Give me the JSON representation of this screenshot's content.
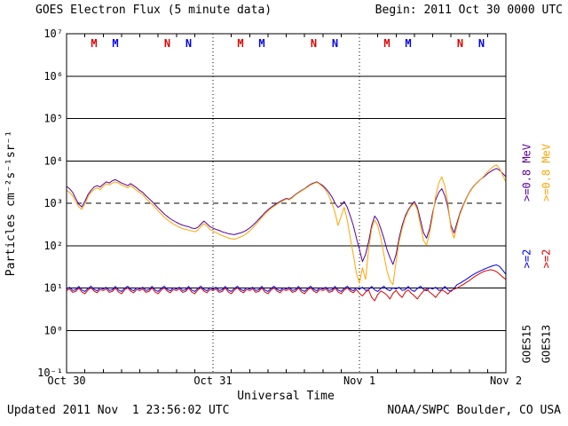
{
  "header": {
    "title": "GOES Electron Flux (5 minute data)",
    "begin_label": "Begin: 2011 Oct 30 0000 UTC"
  },
  "footer": {
    "updated": "Updated 2011 Nov  1 23:56:02 UTC",
    "credit": "NOAA/SWPC Boulder, CO USA"
  },
  "axes": {
    "y_label": "Particles cm⁻²s⁻¹sr⁻¹",
    "x_label": "Universal Time"
  },
  "legend": {
    "inner": {
      "sat": "GOES15",
      "e08": ">=0.8 MeV",
      "e2": ">=2",
      "color_e08": "#550099",
      "color_e2": "#0000EE",
      "color_sat": "#000000"
    },
    "outer": {
      "sat": "GOES13",
      "e08": ">=0.8 MeV",
      "e2": ">=2",
      "color_e08": "#FFA500",
      "color_e2": "#DD0000",
      "color_sat": "#000000"
    }
  },
  "chart_data": {
    "type": "line",
    "title": "GOES Electron Flux (5 minute data)",
    "x_unit": "hours since 2011-10-30 00:00 UTC",
    "x_range": [
      0,
      72
    ],
    "y_scale": "log10",
    "y_range_exp": [
      -1,
      7
    ],
    "y_tick_labels": [
      "10⁻¹",
      "10⁰",
      "10¹",
      "10²",
      "10³",
      "10⁴",
      "10⁵",
      "10⁶",
      "10⁷"
    ],
    "x_ticks": [
      {
        "hour": 0,
        "label": "Oct 30"
      },
      {
        "hour": 24,
        "label": "Oct 31"
      },
      {
        "hour": 48,
        "label": "Nov 1"
      },
      {
        "hour": 72,
        "label": "Nov 2"
      }
    ],
    "x_axis_label": "Universal Time",
    "day_lines_hours": [
      24,
      48
    ],
    "minor_tick_hours": 3,
    "threshold_line": {
      "value": 1000,
      "style": "dashed"
    },
    "grid": "solid-per-decade",
    "legend_position": "right-rotated",
    "markers": [
      {
        "hour": 4.5,
        "label": "M",
        "color": "#DD0000"
      },
      {
        "hour": 8,
        "label": "M",
        "color": "#0000EE"
      },
      {
        "hour": 16.5,
        "label": "N",
        "color": "#DD0000"
      },
      {
        "hour": 20,
        "label": "N",
        "color": "#0000EE"
      },
      {
        "hour": 28.5,
        "label": "M",
        "color": "#DD0000"
      },
      {
        "hour": 32,
        "label": "M",
        "color": "#0000EE"
      },
      {
        "hour": 40.5,
        "label": "N",
        "color": "#DD0000"
      },
      {
        "hour": 44,
        "label": "N",
        "color": "#0000EE"
      },
      {
        "hour": 52.5,
        "label": "M",
        "color": "#DD0000"
      },
      {
        "hour": 56,
        "label": "M",
        "color": "#0000EE"
      },
      {
        "hour": 64.5,
        "label": "N",
        "color": "#DD0000"
      },
      {
        "hour": 68,
        "label": "N",
        "color": "#0000EE"
      }
    ],
    "series": [
      {
        "name": "GOES15 >=0.8 MeV",
        "color": "#550099",
        "start_hour": 0,
        "step_hours": 0.5,
        "values": [
          2500,
          2200,
          1800,
          1300,
          950,
          820,
          1100,
          1600,
          2000,
          2400,
          2600,
          2400,
          2800,
          3200,
          3000,
          3400,
          3600,
          3300,
          3000,
          2800,
          2600,
          2900,
          2600,
          2300,
          2000,
          1800,
          1500,
          1300,
          1100,
          930,
          780,
          660,
          560,
          490,
          430,
          390,
          355,
          325,
          305,
          290,
          280,
          260,
          250,
          270,
          320,
          380,
          330,
          280,
          260,
          240,
          230,
          212,
          202,
          192,
          186,
          181,
          190,
          200,
          212,
          232,
          260,
          300,
          350,
          420,
          500,
          600,
          700,
          800,
          900,
          1000,
          1100,
          1200,
          1300,
          1250,
          1400,
          1600,
          1800,
          2000,
          2200,
          2500,
          2800,
          3000,
          3200,
          2900,
          2600,
          2200,
          1800,
          1400,
          1000,
          800,
          900,
          1100,
          800,
          500,
          300,
          150,
          82,
          42,
          62,
          122,
          300,
          500,
          400,
          250,
          150,
          82,
          52,
          36,
          62,
          150,
          300,
          500,
          700,
          900,
          1100,
          800,
          400,
          200,
          150,
          250,
          600,
          1200,
          1800,
          2200,
          1500,
          800,
          300,
          200,
          350,
          600,
          900,
          1300,
          1800,
          2300,
          2800,
          3300,
          3800,
          4300,
          5000,
          5600,
          6200,
          6600,
          6000,
          5000,
          4200
        ]
      },
      {
        "name": "GOES13 >=0.8 MeV",
        "color": "#FFA500",
        "start_hour": 0,
        "step_hours": 0.5,
        "values": [
          2000,
          1800,
          1500,
          1100,
          820,
          720,
          950,
          1400,
          1800,
          2100,
          2300,
          2100,
          2500,
          2900,
          2700,
          3000,
          3200,
          3000,
          2700,
          2500,
          2300,
          2600,
          2300,
          2000,
          1800,
          1600,
          1300,
          1100,
          950,
          800,
          660,
          560,
          470,
          410,
          360,
          325,
          295,
          272,
          252,
          242,
          232,
          222,
          212,
          232,
          280,
          330,
          290,
          240,
          222,
          202,
          186,
          172,
          162,
          152,
          146,
          141,
          150,
          160,
          172,
          192,
          222,
          262,
          312,
          380,
          460,
          550,
          650,
          750,
          850,
          950,
          1050,
          1150,
          1250,
          1200,
          1350,
          1550,
          1750,
          1950,
          2150,
          2400,
          2700,
          2900,
          3100,
          2800,
          2400,
          2000,
          1500,
          1000,
          600,
          300,
          500,
          800,
          400,
          150,
          62,
          22,
          13,
          30,
          16,
          82,
          250,
          400,
          300,
          150,
          62,
          26,
          15,
          12,
          42,
          122,
          250,
          450,
          650,
          850,
          1000,
          700,
          300,
          132,
          102,
          200,
          500,
          1500,
          3000,
          4200,
          2500,
          1000,
          250,
          150,
          300,
          550,
          850,
          1250,
          1750,
          2250,
          2750,
          3250,
          3800,
          4500,
          5500,
          6500,
          7500,
          8000,
          6500,
          4500,
          3200
        ]
      },
      {
        "name": "GOES15 >=2 MeV",
        "color": "#0000EE",
        "start_hour": 0,
        "step_hours": 0.5,
        "values": [
          9.5,
          10.4,
          8.8,
          9.1,
          10.9,
          9.0,
          8.3,
          9.7,
          11.0,
          9.3,
          8.6,
          10.1,
          9.5,
          10.4,
          8.8,
          9.1,
          10.9,
          9.0,
          8.3,
          9.7,
          11.0,
          9.3,
          8.6,
          10.1,
          9.5,
          10.4,
          8.8,
          9.1,
          10.9,
          9.0,
          8.3,
          9.7,
          11.0,
          9.3,
          8.6,
          10.1,
          9.5,
          10.4,
          8.8,
          9.1,
          10.9,
          9.0,
          8.3,
          9.7,
          11.0,
          9.3,
          8.6,
          10.1,
          9.5,
          10.4,
          8.8,
          9.1,
          10.9,
          9.0,
          8.3,
          9.7,
          11.0,
          9.3,
          8.6,
          10.1,
          9.5,
          10.4,
          8.8,
          9.1,
          10.9,
          9.0,
          8.3,
          9.7,
          11.0,
          9.3,
          8.6,
          10.1,
          9.5,
          10.4,
          8.8,
          9.1,
          10.9,
          9.0,
          8.3,
          9.7,
          11.0,
          9.3,
          8.6,
          10.1,
          9.5,
          10.4,
          8.8,
          9.1,
          10.9,
          9.0,
          8.3,
          9.7,
          11.0,
          9.3,
          8.6,
          10.1,
          9.5,
          10.4,
          8.8,
          9.1,
          10.9,
          9.0,
          8.3,
          9.7,
          11.0,
          9.3,
          8.6,
          10.1,
          9.5,
          10.4,
          8.8,
          9.1,
          10.9,
          9.0,
          8.3,
          9.7,
          11.0,
          9.3,
          8.6,
          10.1,
          9.5,
          10.4,
          8.8,
          9.1,
          10.9,
          9.0,
          8.3,
          9.7,
          12,
          13,
          14.5,
          16,
          18,
          20,
          22,
          24,
          26,
          28,
          30,
          32,
          34,
          35,
          32,
          26,
          21
        ]
      },
      {
        "name": "GOES13 >=2 MeV",
        "color": "#DD0000",
        "start_hour": 0,
        "step_hours": 0.5,
        "values": [
          8.7,
          9.5,
          7.9,
          8.3,
          10.0,
          8.1,
          7.3,
          8.9,
          10.1,
          8.5,
          7.7,
          9.2,
          8.7,
          9.5,
          7.9,
          8.3,
          10.0,
          8.1,
          7.3,
          8.9,
          10.1,
          8.5,
          7.7,
          9.2,
          8.7,
          9.5,
          7.9,
          8.3,
          10.0,
          8.1,
          7.3,
          8.9,
          10.1,
          8.5,
          7.7,
          9.2,
          8.7,
          9.5,
          7.9,
          8.3,
          10.0,
          8.1,
          7.3,
          8.9,
          10.1,
          8.5,
          7.7,
          9.2,
          8.7,
          9.5,
          7.9,
          8.3,
          10.0,
          8.1,
          7.3,
          8.9,
          10.1,
          8.5,
          7.7,
          9.2,
          8.7,
          9.5,
          7.9,
          8.3,
          10.0,
          8.1,
          7.3,
          8.9,
          10.1,
          8.5,
          7.7,
          9.2,
          8.7,
          9.5,
          7.9,
          8.3,
          10.0,
          8.1,
          7.3,
          8.9,
          10.1,
          8.5,
          7.7,
          9.2,
          8.7,
          9.5,
          7.9,
          8.3,
          10.0,
          8.1,
          7.3,
          8.9,
          10.1,
          8.5,
          7.7,
          9.2,
          7.5,
          6.5,
          8.0,
          9.0,
          6.0,
          5.0,
          7.0,
          8.5,
          7.8,
          6.8,
          5.5,
          7.5,
          8.8,
          7.0,
          6.0,
          8.0,
          9.0,
          7.5,
          6.5,
          5.5,
          7.0,
          8.5,
          9.5,
          8.0,
          7.0,
          6.0,
          7.5,
          9.0,
          8.2,
          7.2,
          8.8,
          9.4,
          10,
          11,
          12,
          13.5,
          15,
          17,
          19,
          21,
          23,
          25,
          26,
          27,
          26,
          24,
          21,
          18,
          16
        ]
      }
    ]
  }
}
